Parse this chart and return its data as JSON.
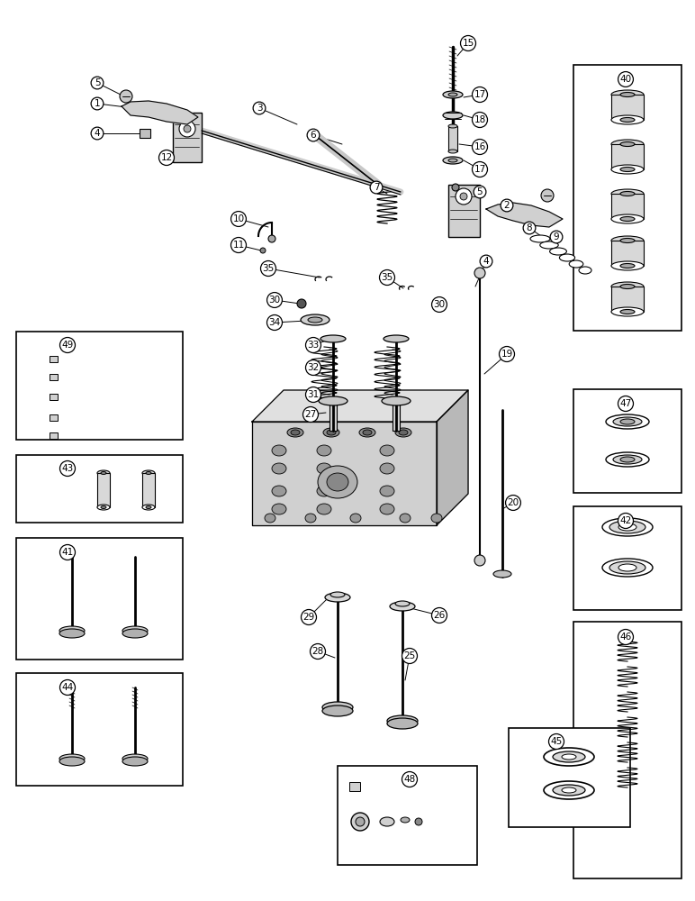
{
  "bg": "#ffffff",
  "lc": "#000000",
  "boxes": {
    "49": [
      18,
      368,
      185,
      120
    ],
    "43": [
      18,
      505,
      185,
      75
    ],
    "41": [
      18,
      597,
      185,
      135
    ],
    "44": [
      18,
      747,
      185,
      125
    ],
    "40": [
      637,
      72,
      120,
      295
    ],
    "47": [
      637,
      432,
      120,
      115
    ],
    "42": [
      637,
      562,
      120,
      115
    ],
    "46": [
      637,
      690,
      120,
      285
    ],
    "45": [
      565,
      808,
      135,
      110
    ],
    "48": [
      375,
      850,
      155,
      110
    ]
  },
  "labels": [
    [
      "5",
      108,
      92
    ],
    [
      "1",
      108,
      115
    ],
    [
      "4",
      108,
      148
    ],
    [
      "12",
      185,
      175
    ],
    [
      "3",
      288,
      120
    ],
    [
      "6",
      348,
      150
    ],
    [
      "7",
      418,
      208
    ],
    [
      "10",
      265,
      243
    ],
    [
      "11",
      265,
      272
    ],
    [
      "35",
      298,
      298
    ],
    [
      "30",
      305,
      333
    ],
    [
      "34",
      305,
      358
    ],
    [
      "33",
      348,
      383
    ],
    [
      "32",
      348,
      408
    ],
    [
      "31",
      348,
      438
    ],
    [
      "27",
      345,
      460
    ],
    [
      "15",
      520,
      48
    ],
    [
      "17",
      533,
      105
    ],
    [
      "18",
      533,
      133
    ],
    [
      "16",
      533,
      163
    ],
    [
      "17",
      533,
      188
    ],
    [
      "5",
      533,
      213
    ],
    [
      "2",
      563,
      228
    ],
    [
      "8",
      588,
      253
    ],
    [
      "9",
      618,
      263
    ],
    [
      "4",
      540,
      290
    ],
    [
      "35",
      430,
      308
    ],
    [
      "30",
      488,
      338
    ],
    [
      "19",
      563,
      393
    ],
    [
      "20",
      570,
      558
    ],
    [
      "29",
      343,
      685
    ],
    [
      "28",
      353,
      723
    ],
    [
      "26",
      488,
      683
    ],
    [
      "25",
      455,
      728
    ],
    [
      "49",
      75,
      383
    ],
    [
      "43",
      75,
      520
    ],
    [
      "41",
      75,
      613
    ],
    [
      "44",
      75,
      763
    ],
    [
      "40",
      695,
      88
    ],
    [
      "47",
      695,
      448
    ],
    [
      "42",
      695,
      578
    ],
    [
      "46",
      695,
      707
    ],
    [
      "45",
      618,
      823
    ],
    [
      "48",
      455,
      865
    ]
  ]
}
